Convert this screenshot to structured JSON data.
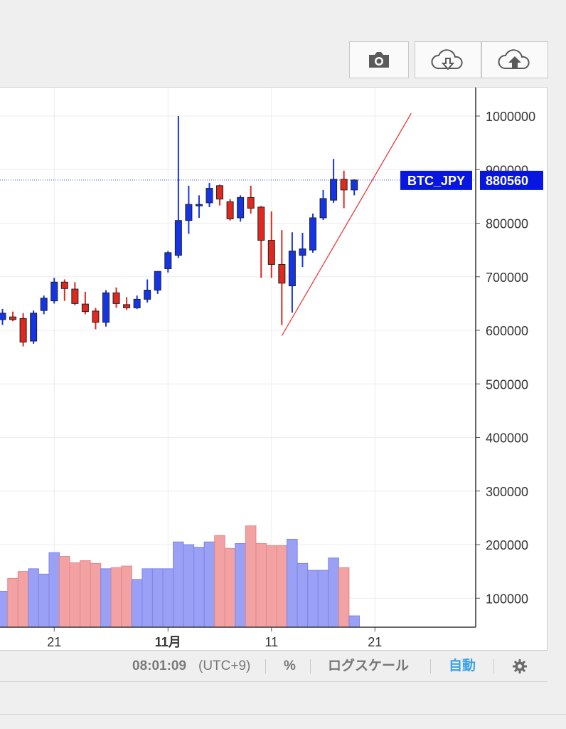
{
  "toolbar": {
    "snapshot_icon": "camera-icon",
    "download_icon": "cloud-download-icon",
    "upload_icon": "cloud-upload-icon"
  },
  "chart_data": {
    "type": "candlestick",
    "symbol_label": "BTC_JPY",
    "last_price_label": "880560",
    "last_price": 880560,
    "ylim": [
      40000,
      1050000
    ],
    "y_ticks": [
      {
        "value": 1000000,
        "label": "1000000"
      },
      {
        "value": 900000,
        "label": "900000"
      },
      {
        "value": 800000,
        "label": "800000"
      },
      {
        "value": 700000,
        "label": "700000"
      },
      {
        "value": 600000,
        "label": "600000"
      },
      {
        "value": 500000,
        "label": "500000"
      },
      {
        "value": 400000,
        "label": "400000"
      },
      {
        "value": 300000,
        "label": "300000"
      },
      {
        "value": 200000,
        "label": "200000"
      },
      {
        "value": 100000,
        "label": "100000"
      }
    ],
    "x_ticks": [
      {
        "index": 5,
        "label": "21"
      },
      {
        "index": 16,
        "label": "11月",
        "bold": true
      },
      {
        "index": 26,
        "label": "11"
      },
      {
        "index": 36,
        "label": "21"
      }
    ],
    "candles": [
      {
        "i": 0,
        "o": 620000,
        "h": 640000,
        "l": 610000,
        "c": 632000
      },
      {
        "i": 1,
        "o": 625000,
        "h": 635000,
        "l": 617000,
        "c": 620000
      },
      {
        "i": 2,
        "o": 622000,
        "h": 632000,
        "l": 570000,
        "c": 578000
      },
      {
        "i": 3,
        "o": 580000,
        "h": 637000,
        "l": 575000,
        "c": 632000
      },
      {
        "i": 4,
        "o": 637000,
        "h": 665000,
        "l": 630000,
        "c": 660000
      },
      {
        "i": 5,
        "o": 655000,
        "h": 698000,
        "l": 650000,
        "c": 690000
      },
      {
        "i": 6,
        "o": 690000,
        "h": 695000,
        "l": 655000,
        "c": 678000
      },
      {
        "i": 7,
        "o": 677000,
        "h": 690000,
        "l": 647000,
        "c": 650000
      },
      {
        "i": 8,
        "o": 649000,
        "h": 672000,
        "l": 630000,
        "c": 635000
      },
      {
        "i": 9,
        "o": 636000,
        "h": 642000,
        "l": 602000,
        "c": 615000
      },
      {
        "i": 10,
        "o": 615000,
        "h": 675000,
        "l": 607000,
        "c": 670000
      },
      {
        "i": 11,
        "o": 670000,
        "h": 680000,
        "l": 642000,
        "c": 650000
      },
      {
        "i": 12,
        "o": 648000,
        "h": 662000,
        "l": 638000,
        "c": 642000
      },
      {
        "i": 13,
        "o": 642000,
        "h": 665000,
        "l": 640000,
        "c": 658000
      },
      {
        "i": 14,
        "o": 658000,
        "h": 695000,
        "l": 652000,
        "c": 675000
      },
      {
        "i": 15,
        "o": 675000,
        "h": 710000,
        "l": 668000,
        "c": 710000
      },
      {
        "i": 16,
        "o": 715000,
        "h": 748000,
        "l": 708000,
        "c": 745000
      },
      {
        "i": 17,
        "o": 740000,
        "h": 1000000,
        "l": 735000,
        "c": 805000
      },
      {
        "i": 18,
        "o": 805000,
        "h": 870000,
        "l": 780000,
        "c": 835000
      },
      {
        "i": 19,
        "o": 833000,
        "h": 852000,
        "l": 810000,
        "c": 835000
      },
      {
        "i": 20,
        "o": 838000,
        "h": 875000,
        "l": 830000,
        "c": 865000
      },
      {
        "i": 21,
        "o": 870000,
        "h": 872000,
        "l": 833000,
        "c": 845000
      },
      {
        "i": 22,
        "o": 840000,
        "h": 845000,
        "l": 805000,
        "c": 808000
      },
      {
        "i": 23,
        "o": 810000,
        "h": 852000,
        "l": 803000,
        "c": 848000
      },
      {
        "i": 24,
        "o": 848000,
        "h": 870000,
        "l": 818000,
        "c": 828000
      },
      {
        "i": 25,
        "o": 830000,
        "h": 832000,
        "l": 698000,
        "c": 768000
      },
      {
        "i": 26,
        "o": 768000,
        "h": 822000,
        "l": 698000,
        "c": 723000
      },
      {
        "i": 27,
        "o": 723000,
        "h": 787000,
        "l": 610000,
        "c": 688000
      },
      {
        "i": 28,
        "o": 683000,
        "h": 783000,
        "l": 633000,
        "c": 748000
      },
      {
        "i": 29,
        "o": 740000,
        "h": 782000,
        "l": 718000,
        "c": 752000
      },
      {
        "i": 30,
        "o": 750000,
        "h": 818000,
        "l": 745000,
        "c": 810000
      },
      {
        "i": 31,
        "o": 810000,
        "h": 862000,
        "l": 806000,
        "c": 846000
      },
      {
        "i": 32,
        "o": 843000,
        "h": 920000,
        "l": 838000,
        "c": 882000
      },
      {
        "i": 33,
        "o": 882000,
        "h": 898000,
        "l": 828000,
        "c": 862000
      },
      {
        "i": 34,
        "o": 862000,
        "h": 882000,
        "l": 852000,
        "c": 880560
      }
    ],
    "volume_series": {
      "name": "Volume",
      "values": [
        {
          "i": -1,
          "v": 127000,
          "up": true
        },
        {
          "i": 0,
          "v": 113000,
          "up": true
        },
        {
          "i": 1,
          "v": 137000,
          "up": false
        },
        {
          "i": 2,
          "v": 150000,
          "up": false
        },
        {
          "i": 3,
          "v": 155000,
          "up": true
        },
        {
          "i": 4,
          "v": 145000,
          "up": true
        },
        {
          "i": 5,
          "v": 185000,
          "up": true
        },
        {
          "i": 6,
          "v": 178000,
          "up": false
        },
        {
          "i": 7,
          "v": 166000,
          "up": false
        },
        {
          "i": 8,
          "v": 170000,
          "up": false
        },
        {
          "i": 9,
          "v": 165000,
          "up": false
        },
        {
          "i": 10,
          "v": 155000,
          "up": true
        },
        {
          "i": 11,
          "v": 157000,
          "up": false
        },
        {
          "i": 12,
          "v": 160000,
          "up": false
        },
        {
          "i": 13,
          "v": 135000,
          "up": true
        },
        {
          "i": 14,
          "v": 155000,
          "up": true
        },
        {
          "i": 15,
          "v": 155000,
          "up": true
        },
        {
          "i": 16,
          "v": 155000,
          "up": true
        },
        {
          "i": 17,
          "v": 205000,
          "up": true
        },
        {
          "i": 18,
          "v": 200000,
          "up": true
        },
        {
          "i": 19,
          "v": 195000,
          "up": true
        },
        {
          "i": 20,
          "v": 205000,
          "up": true
        },
        {
          "i": 21,
          "v": 217000,
          "up": false
        },
        {
          "i": 22,
          "v": 193000,
          "up": false
        },
        {
          "i": 23,
          "v": 202000,
          "up": true
        },
        {
          "i": 24,
          "v": 235000,
          "up": false
        },
        {
          "i": 25,
          "v": 202000,
          "up": false
        },
        {
          "i": 26,
          "v": 198000,
          "up": false
        },
        {
          "i": 27,
          "v": 198000,
          "up": false
        },
        {
          "i": 28,
          "v": 210000,
          "up": true
        },
        {
          "i": 29,
          "v": 165000,
          "up": true
        },
        {
          "i": 30,
          "v": 152000,
          "up": true
        },
        {
          "i": 31,
          "v": 152000,
          "up": true
        },
        {
          "i": 32,
          "v": 175000,
          "up": true
        },
        {
          "i": 33,
          "v": 157000,
          "up": false
        },
        {
          "i": 34,
          "v": 67000,
          "up": true
        }
      ]
    },
    "trendline": {
      "from": {
        "i": 27,
        "v": 590000
      },
      "to": {
        "i": 39.5,
        "v": 1005000
      }
    },
    "colors": {
      "up": "#1434e6",
      "down": "#e0281e",
      "vol_up": "#9aa0f3",
      "vol_down": "#f2a2a2",
      "trend": "#ee3b3b",
      "label_bg": "#0717e0",
      "grid": "#ececec"
    },
    "grid": true
  },
  "status": {
    "time": "08:01:09",
    "timezone": "(UTC+9)",
    "percent": "%",
    "log_scale": "ログスケール",
    "auto": "自動",
    "settings_icon": "gear-icon"
  }
}
